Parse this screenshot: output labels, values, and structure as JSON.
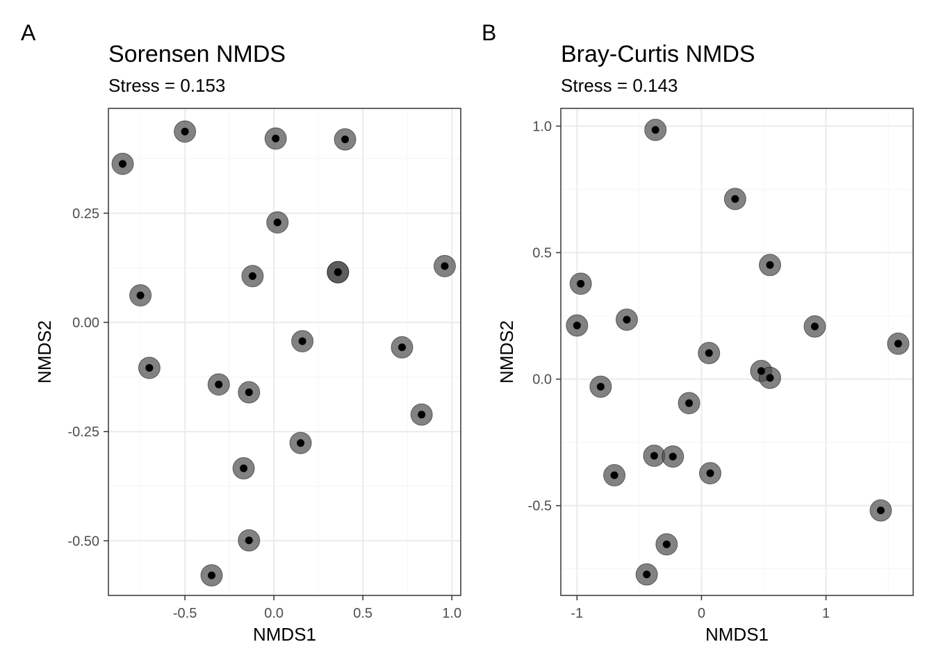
{
  "chart_data": [
    {
      "type": "scatter",
      "panel_tag": "A",
      "title": "Sorensen NMDS",
      "subtitle": "Stress = 0.153",
      "xlabel": "NMDS1",
      "ylabel": "NMDS2",
      "xlim": [
        -0.93,
        1.05
      ],
      "ylim": [
        -0.625,
        0.49
      ],
      "xticks": [
        {
          "v": -0.5,
          "label": "-0.5"
        },
        {
          "v": 0.0,
          "label": "0.0"
        },
        {
          "v": 0.5,
          "label": "0.5"
        },
        {
          "v": 1.0,
          "label": "1.0"
        }
      ],
      "yticks": [
        {
          "v": -0.5,
          "label": "-0.50"
        },
        {
          "v": -0.25,
          "label": "-0.25"
        },
        {
          "v": 0.0,
          "label": "0.00"
        },
        {
          "v": 0.25,
          "label": "0.25"
        }
      ],
      "xminor": [
        -0.75,
        -0.25,
        0.25,
        0.75
      ],
      "yminor": [
        -0.375,
        -0.125,
        0.125,
        0.375
      ],
      "grid": true,
      "points": [
        {
          "x": -0.85,
          "y": 0.363
        },
        {
          "x": -0.5,
          "y": 0.437
        },
        {
          "x": 0.01,
          "y": 0.421
        },
        {
          "x": 0.4,
          "y": 0.419
        },
        {
          "x": 0.02,
          "y": 0.229
        },
        {
          "x": -0.75,
          "y": 0.062
        },
        {
          "x": -0.12,
          "y": 0.106
        },
        {
          "x": 0.36,
          "y": 0.115
        },
        {
          "x": 0.36,
          "y": 0.115
        },
        {
          "x": 0.96,
          "y": 0.129
        },
        {
          "x": -0.7,
          "y": -0.104
        },
        {
          "x": 0.16,
          "y": -0.043
        },
        {
          "x": 0.72,
          "y": -0.057
        },
        {
          "x": -0.31,
          "y": -0.142
        },
        {
          "x": -0.14,
          "y": -0.16
        },
        {
          "x": 0.83,
          "y": -0.211
        },
        {
          "x": 0.15,
          "y": -0.276
        },
        {
          "x": -0.17,
          "y": -0.334
        },
        {
          "x": -0.14,
          "y": -0.499
        },
        {
          "x": -0.35,
          "y": -0.579
        }
      ]
    },
    {
      "type": "scatter",
      "panel_tag": "B",
      "title": "Bray-Curtis NMDS",
      "subtitle": "Stress = 0.143",
      "xlabel": "NMDS1",
      "ylabel": "NMDS2",
      "xlim": [
        -1.13,
        1.7
      ],
      "ylim": [
        -0.855,
        1.07
      ],
      "xticks": [
        {
          "v": -1,
          "label": "-1"
        },
        {
          "v": 0,
          "label": "0"
        },
        {
          "v": 1,
          "label": "1"
        }
      ],
      "yticks": [
        {
          "v": -0.5,
          "label": "-0.5"
        },
        {
          "v": 0.0,
          "label": "0.0"
        },
        {
          "v": 0.5,
          "label": "0.5"
        },
        {
          "v": 1.0,
          "label": "1.0"
        }
      ],
      "xminor": [
        -0.5,
        0.5,
        1.5
      ],
      "yminor": [
        -0.75,
        -0.25,
        0.25,
        0.75
      ],
      "grid": true,
      "points": [
        {
          "x": -0.37,
          "y": 0.985
        },
        {
          "x": 0.27,
          "y": 0.712
        },
        {
          "x": 0.55,
          "y": 0.451
        },
        {
          "x": -0.97,
          "y": 0.377
        },
        {
          "x": -1.0,
          "y": 0.212
        },
        {
          "x": -0.6,
          "y": 0.235
        },
        {
          "x": 0.91,
          "y": 0.208
        },
        {
          "x": 1.58,
          "y": 0.14
        },
        {
          "x": 0.06,
          "y": 0.103
        },
        {
          "x": 0.48,
          "y": 0.032
        },
        {
          "x": 0.55,
          "y": 0.005
        },
        {
          "x": -0.81,
          "y": -0.03
        },
        {
          "x": -0.1,
          "y": -0.095
        },
        {
          "x": -0.38,
          "y": -0.303
        },
        {
          "x": -0.23,
          "y": -0.306
        },
        {
          "x": -0.7,
          "y": -0.38
        },
        {
          "x": 0.07,
          "y": -0.372
        },
        {
          "x": -0.28,
          "y": -0.653
        },
        {
          "x": 1.44,
          "y": -0.519
        },
        {
          "x": -0.44,
          "y": -0.772
        }
      ]
    }
  ]
}
